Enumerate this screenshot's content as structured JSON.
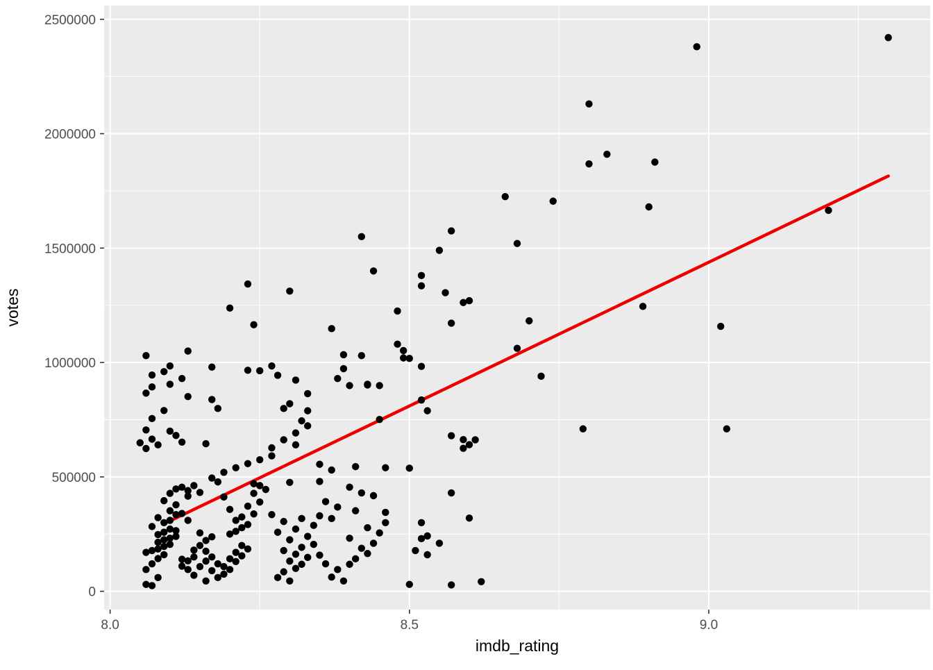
{
  "chart_data": {
    "type": "scatter",
    "title": "",
    "xlabel": "imdb_rating",
    "ylabel": "votes",
    "xlim": [
      7.99,
      9.37
    ],
    "ylim": [
      -80000,
      2560000
    ],
    "x_ticks": [
      8.0,
      8.5,
      9.0
    ],
    "x_tick_labels": [
      "8.0",
      "8.5",
      "9.0"
    ],
    "x_minor_ticks": [
      8.25,
      8.75,
      9.25
    ],
    "y_ticks": [
      0,
      500000,
      1000000,
      1500000,
      2000000,
      2500000
    ],
    "y_tick_labels": [
      "0",
      "500000",
      "1000000",
      "1500000",
      "2000000",
      "2500000"
    ],
    "y_minor_ticks": [
      250000,
      750000,
      1250000,
      1750000,
      2250000
    ],
    "grid": true,
    "legend": "none",
    "colors": {
      "panel_bg": "#ebebeb",
      "grid_major": "#ffffff",
      "grid_minor": "#ffffff",
      "point": "#000000",
      "trend": "#ee0000",
      "tick_text": "#4d4d4d",
      "tick_mark": "#333333",
      "page_bg": "#ffffff"
    },
    "trend_line": {
      "x1": 8.09,
      "y1": 295000,
      "x2": 9.3,
      "y2": 1815000
    },
    "points": [
      [
        8.06,
        1030000
      ],
      [
        8.13,
        1050000
      ],
      [
        8.1,
        985000
      ],
      [
        8.09,
        960000
      ],
      [
        8.07,
        945000
      ],
      [
        8.12,
        930000
      ],
      [
        8.1,
        905000
      ],
      [
        8.07,
        893000
      ],
      [
        8.06,
        866000
      ],
      [
        8.13,
        851000
      ],
      [
        8.09,
        790000
      ],
      [
        8.07,
        755000
      ],
      [
        8.06,
        705000
      ],
      [
        8.1,
        700000
      ],
      [
        8.11,
        681000
      ],
      [
        8.07,
        665000
      ],
      [
        8.05,
        649000
      ],
      [
        8.08,
        640000
      ],
      [
        8.12,
        652000
      ],
      [
        8.16,
        645000
      ],
      [
        8.06,
        624000
      ],
      [
        8.17,
        980000
      ],
      [
        8.23,
        966000
      ],
      [
        8.27,
        985000
      ],
      [
        8.28,
        944000
      ],
      [
        8.17,
        838000
      ],
      [
        8.18,
        799000
      ],
      [
        8.2,
        1238000
      ],
      [
        8.24,
        1165000
      ],
      [
        8.23,
        1343000
      ],
      [
        8.3,
        1312000
      ],
      [
        8.25,
        964000
      ],
      [
        8.31,
        923000
      ],
      [
        8.33,
        864000
      ],
      [
        8.3,
        820000
      ],
      [
        8.29,
        799000
      ],
      [
        8.33,
        789000
      ],
      [
        8.32,
        745000
      ],
      [
        8.33,
        723000
      ],
      [
        8.31,
        692000
      ],
      [
        8.29,
        662000
      ],
      [
        8.31,
        640000
      ],
      [
        8.27,
        627000
      ],
      [
        8.38,
        930000
      ],
      [
        8.4,
        899000
      ],
      [
        8.43,
        905000
      ],
      [
        8.39,
        973000
      ],
      [
        8.45,
        751000
      ],
      [
        8.42,
        1550000
      ],
      [
        8.44,
        1400000
      ],
      [
        8.52,
        1380000
      ],
      [
        8.57,
        1575000
      ],
      [
        8.55,
        1490000
      ],
      [
        8.56,
        1305000
      ],
      [
        8.52,
        1335000
      ],
      [
        8.48,
        1225000
      ],
      [
        8.57,
        1172000
      ],
      [
        8.59,
        1262000
      ],
      [
        8.6,
        1270000
      ],
      [
        8.48,
        1080000
      ],
      [
        8.49,
        1052000
      ],
      [
        8.49,
        1020000
      ],
      [
        8.42,
        1030000
      ],
      [
        8.39,
        1034000
      ],
      [
        8.37,
        1148000
      ],
      [
        8.43,
        902000
      ],
      [
        8.52,
        836000
      ],
      [
        8.53,
        789000
      ],
      [
        8.45,
        899000
      ],
      [
        8.5,
        1018000
      ],
      [
        8.52,
        983000
      ],
      [
        8.57,
        680000
      ],
      [
        8.59,
        663000
      ],
      [
        8.6,
        641000
      ],
      [
        8.59,
        625000
      ],
      [
        8.66,
        1725000
      ],
      [
        8.68,
        1520000
      ],
      [
        8.7,
        1182000
      ],
      [
        8.68,
        1062000
      ],
      [
        8.72,
        940000
      ],
      [
        8.74,
        1705000
      ],
      [
        8.8,
        2130000
      ],
      [
        8.83,
        1910000
      ],
      [
        8.8,
        1868000
      ],
      [
        8.91,
        1876000
      ],
      [
        8.9,
        1680000
      ],
      [
        8.89,
        1245000
      ],
      [
        8.79,
        710000
      ],
      [
        8.98,
        2380000
      ],
      [
        9.02,
        1158000
      ],
      [
        9.03,
        710000
      ],
      [
        9.2,
        1665000
      ],
      [
        9.3,
        2420000
      ],
      [
        8.35,
        555000
      ],
      [
        8.37,
        530000
      ],
      [
        8.41,
        545000
      ],
      [
        8.46,
        540000
      ],
      [
        8.5,
        538000
      ],
      [
        8.35,
        480000
      ],
      [
        8.3,
        476000
      ],
      [
        8.4,
        455000
      ],
      [
        8.42,
        430000
      ],
      [
        8.44,
        418000
      ],
      [
        8.36,
        392000
      ],
      [
        8.38,
        368000
      ],
      [
        8.41,
        352000
      ],
      [
        8.35,
        330000
      ],
      [
        8.37,
        318000
      ],
      [
        8.46,
        345000
      ],
      [
        8.52,
        300000
      ],
      [
        8.53,
        242000
      ],
      [
        8.52,
        230000
      ],
      [
        8.55,
        210000
      ],
      [
        8.51,
        178000
      ],
      [
        8.53,
        160000
      ],
      [
        8.57,
        430000
      ],
      [
        8.6,
        320000
      ],
      [
        8.61,
        662000
      ],
      [
        8.5,
        30000
      ],
      [
        8.57,
        28000
      ],
      [
        8.62,
        42000
      ],
      [
        8.06,
        30000
      ],
      [
        8.07,
        25000
      ],
      [
        8.08,
        60000
      ],
      [
        8.06,
        95000
      ],
      [
        8.07,
        120000
      ],
      [
        8.08,
        143000
      ],
      [
        8.09,
        160000
      ],
      [
        8.06,
        170000
      ],
      [
        8.07,
        178000
      ],
      [
        8.08,
        185000
      ],
      [
        8.09,
        196000
      ],
      [
        8.1,
        205000
      ],
      [
        8.08,
        214000
      ],
      [
        8.09,
        225000
      ],
      [
        8.1,
        232000
      ],
      [
        8.11,
        240000
      ],
      [
        8.08,
        248000
      ],
      [
        8.09,
        258000
      ],
      [
        8.11,
        265000
      ],
      [
        8.1,
        272000
      ],
      [
        8.07,
        283000
      ],
      [
        8.09,
        300000
      ],
      [
        8.1,
        310000
      ],
      [
        8.08,
        322000
      ],
      [
        8.11,
        335000
      ],
      [
        8.1,
        352000
      ],
      [
        8.11,
        378000
      ],
      [
        8.09,
        396000
      ],
      [
        8.1,
        428000
      ],
      [
        8.11,
        447000
      ],
      [
        8.12,
        455000
      ],
      [
        8.13,
        440000
      ],
      [
        8.14,
        462000
      ],
      [
        8.13,
        416000
      ],
      [
        8.15,
        432000
      ],
      [
        8.12,
        340000
      ],
      [
        8.13,
        310000
      ],
      [
        8.12,
        140000
      ],
      [
        8.12,
        110000
      ],
      [
        8.13,
        133000
      ],
      [
        8.14,
        150000
      ],
      [
        8.13,
        95000
      ],
      [
        8.14,
        70000
      ],
      [
        8.15,
        108000
      ],
      [
        8.16,
        132000
      ],
      [
        8.14,
        180000
      ],
      [
        8.15,
        200000
      ],
      [
        8.16,
        222000
      ],
      [
        8.15,
        255000
      ],
      [
        8.17,
        238000
      ],
      [
        8.16,
        175000
      ],
      [
        8.17,
        150000
      ],
      [
        8.18,
        120000
      ],
      [
        8.17,
        90000
      ],
      [
        8.18,
        60000
      ],
      [
        8.16,
        45000
      ],
      [
        8.19,
        75000
      ],
      [
        8.2,
        95000
      ],
      [
        8.19,
        108000
      ],
      [
        8.21,
        130000
      ],
      [
        8.2,
        142000
      ],
      [
        8.22,
        155000
      ],
      [
        8.21,
        170000
      ],
      [
        8.23,
        185000
      ],
      [
        8.22,
        200000
      ],
      [
        8.2,
        250000
      ],
      [
        8.21,
        262000
      ],
      [
        8.22,
        278000
      ],
      [
        8.23,
        292000
      ],
      [
        8.21,
        310000
      ],
      [
        8.22,
        325000
      ],
      [
        8.24,
        338000
      ],
      [
        8.2,
        358000
      ],
      [
        8.23,
        372000
      ],
      [
        8.25,
        390000
      ],
      [
        8.19,
        412000
      ],
      [
        8.24,
        428000
      ],
      [
        8.26,
        445000
      ],
      [
        8.25,
        462000
      ],
      [
        8.18,
        478000
      ],
      [
        8.17,
        495000
      ],
      [
        8.19,
        520000
      ],
      [
        8.21,
        540000
      ],
      [
        8.23,
        558000
      ],
      [
        8.25,
        575000
      ],
      [
        8.27,
        592000
      ],
      [
        8.24,
        470000
      ],
      [
        8.28,
        60000
      ],
      [
        8.3,
        45000
      ],
      [
        8.29,
        85000
      ],
      [
        8.31,
        100000
      ],
      [
        8.32,
        118000
      ],
      [
        8.3,
        132000
      ],
      [
        8.33,
        148000
      ],
      [
        8.31,
        162000
      ],
      [
        8.29,
        178000
      ],
      [
        8.32,
        192000
      ],
      [
        8.34,
        205000
      ],
      [
        8.3,
        225000
      ],
      [
        8.33,
        240000
      ],
      [
        8.28,
        258000
      ],
      [
        8.31,
        272000
      ],
      [
        8.34,
        288000
      ],
      [
        8.29,
        305000
      ],
      [
        8.32,
        318000
      ],
      [
        8.27,
        335000
      ],
      [
        8.35,
        158000
      ],
      [
        8.36,
        120000
      ],
      [
        8.38,
        95000
      ],
      [
        8.37,
        62000
      ],
      [
        8.39,
        45000
      ],
      [
        8.4,
        118000
      ],
      [
        8.41,
        142000
      ],
      [
        8.43,
        165000
      ],
      [
        8.42,
        188000
      ],
      [
        8.44,
        210000
      ],
      [
        8.4,
        232000
      ],
      [
        8.45,
        255000
      ],
      [
        8.43,
        278000
      ],
      [
        8.46,
        300000
      ]
    ]
  }
}
